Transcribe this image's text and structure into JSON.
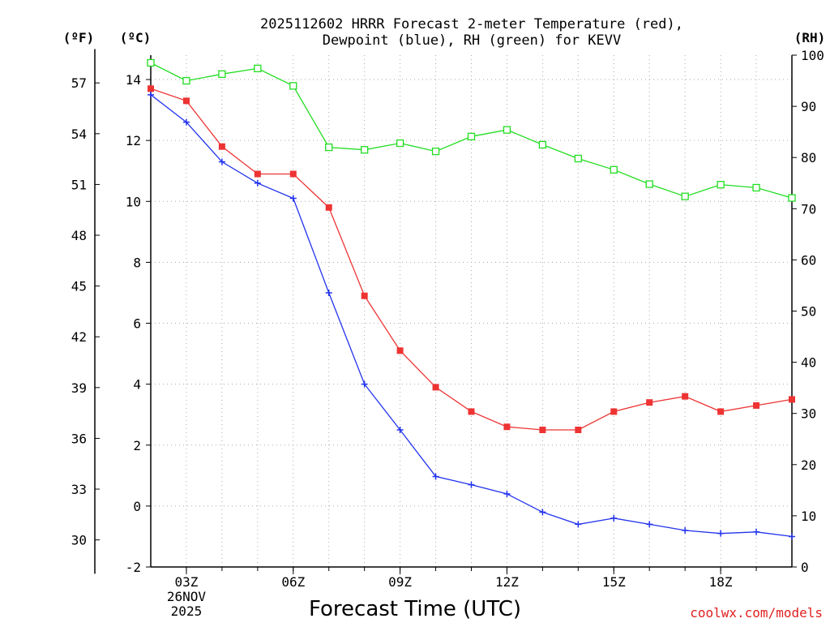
{
  "chart_data": {
    "type": "line",
    "title": [
      "2025112602 HRRR Forecast 2-meter Temperature (red),",
      "Dewpoint (blue), RH (green) for KEVV"
    ],
    "xlabel": "Forecast Time (UTC)",
    "credit": "coolwx.com/models",
    "units": {
      "fahrenheit": "(ºF)",
      "celsius": "(ºC)",
      "rh": "(RH)"
    },
    "x_hours": [
      2,
      3,
      4,
      5,
      6,
      7,
      8,
      9,
      10,
      11,
      12,
      13,
      14,
      15,
      16,
      17,
      18,
      19,
      20
    ],
    "xlim": [
      2,
      20
    ],
    "x_ticks": [
      {
        "hour": 3,
        "label": "03Z",
        "date": "26NOV",
        "year": "2025"
      },
      {
        "hour": 6,
        "label": "06Z"
      },
      {
        "hour": 9,
        "label": "09Z"
      },
      {
        "hour": 12,
        "label": "12Z"
      },
      {
        "hour": 15,
        "label": "15Z"
      },
      {
        "hour": 18,
        "label": "18Z"
      }
    ],
    "ylim_celsius": [
      -2,
      14.8
    ],
    "y_ticks_celsius": [
      -2,
      0,
      2,
      4,
      6,
      8,
      10,
      12,
      14
    ],
    "y_ticks_fahrenheit": [
      30,
      33,
      36,
      39,
      42,
      45,
      48,
      51,
      54,
      57
    ],
    "ylim_rh": [
      0,
      100
    ],
    "y_ticks_rh": [
      0,
      10,
      20,
      30,
      40,
      50,
      60,
      70,
      80,
      90,
      100
    ],
    "series": [
      {
        "name": "Temperature",
        "axis": "celsius",
        "color": "#ee3333",
        "marker": "filled-square",
        "values": [
          13.7,
          13.3,
          11.8,
          10.9,
          10.9,
          9.8,
          6.9,
          5.1,
          3.9,
          3.1,
          2.6,
          2.5,
          2.5,
          3.1,
          3.4,
          3.6,
          3.1,
          3.3,
          3.5
        ]
      },
      {
        "name": "Dewpoint",
        "axis": "celsius",
        "color": "#2233ee",
        "marker": "plus",
        "values": [
          13.5,
          12.6,
          11.3,
          10.6,
          10.1,
          7.0,
          4.0,
          2.5,
          0.97,
          0.7,
          0.4,
          -0.2,
          -0.6,
          -0.4,
          -0.6,
          -0.8,
          -0.9,
          -0.85,
          -1.0
        ]
      },
      {
        "name": "RH",
        "axis": "rh",
        "color": "#22dd22",
        "marker": "open-square",
        "values": [
          98.5,
          95.0,
          96.3,
          97.4,
          94.0,
          82.0,
          81.5,
          82.8,
          81.2,
          84.1,
          85.4,
          82.5,
          79.8,
          77.6,
          74.8,
          72.4,
          74.7,
          74.1,
          72.1
        ]
      }
    ]
  }
}
